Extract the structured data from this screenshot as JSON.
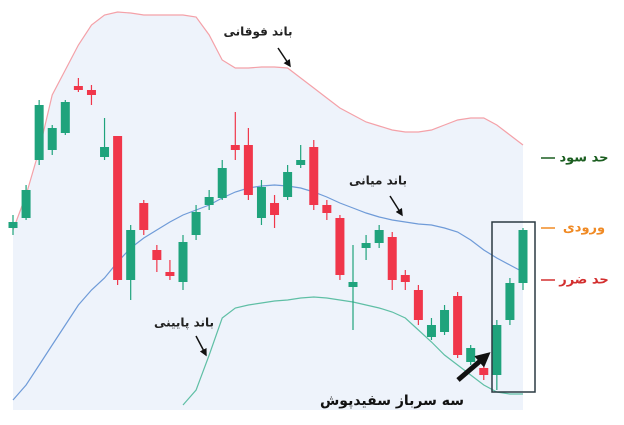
{
  "chart_data": {
    "type": "candlestick",
    "ylim": [
      0,
      425
    ],
    "up_color": "#1fa37c",
    "down_color": "#f0364a",
    "open": [
      197,
      207,
      265,
      275,
      292,
      339,
      335,
      268,
      289,
      145,
      222,
      175,
      153,
      143,
      190,
      220,
      227,
      280,
      280,
      207,
      222,
      228,
      260,
      278,
      220,
      207,
      138,
      177,
      182,
      188,
      150,
      135,
      88,
      93,
      129,
      63,
      57,
      50,
      105,
      142
    ],
    "high": [
      210,
      240,
      325,
      300,
      325,
      347,
      340,
      307,
      289,
      200,
      225,
      180,
      165,
      190,
      220,
      235,
      265,
      313,
      297,
      245,
      230,
      260,
      280,
      285,
      225,
      210,
      180,
      190,
      200,
      193,
      155,
      140,
      107,
      120,
      133,
      80,
      65,
      105,
      147,
      197
    ],
    "low": [
      190,
      205,
      260,
      270,
      290,
      333,
      320,
      265,
      140,
      125,
      190,
      153,
      145,
      135,
      185,
      215,
      225,
      265,
      225,
      200,
      197,
      225,
      257,
      215,
      205,
      145,
      95,
      165,
      177,
      135,
      135,
      100,
      85,
      90,
      67,
      60,
      45,
      35,
      100,
      135
    ],
    "close": [
      203,
      235,
      320,
      297,
      323,
      335,
      330,
      278,
      145,
      195,
      195,
      165,
      149,
      183,
      213,
      228,
      257,
      275,
      230,
      238,
      210,
      253,
      265,
      220,
      212,
      150,
      143,
      182,
      195,
      145,
      143,
      105,
      100,
      115,
      70,
      77,
      50,
      100,
      142,
      195
    ],
    "series": [
      {
        "name": "باند فوقانی",
        "color": "#f4a1a8",
        "values": [
          195,
          230,
          275,
          330,
          355,
          380,
          400,
          410,
          413,
          412,
          410,
          410,
          410,
          410,
          408,
          390,
          365,
          357,
          357,
          358,
          358,
          357,
          347,
          337,
          327,
          317,
          310,
          303,
          299,
          295,
          293,
          293,
          295,
          300,
          305,
          307,
          307,
          300,
          290,
          280
        ]
      },
      {
        "name": "باند میانی",
        "color": "#6f9bd8",
        "values": [
          25,
          40,
          60,
          80,
          100,
          120,
          135,
          147,
          163,
          177,
          187,
          195,
          203,
          210,
          215,
          220,
          227,
          233,
          237,
          239,
          240,
          239,
          237,
          233,
          228,
          222,
          217,
          212,
          208,
          205,
          203,
          201,
          200,
          197,
          193,
          185,
          175,
          167,
          160,
          153
        ]
      },
      {
        "name": "باند پایینی",
        "color": "#5fbfa5",
        "values": [
          null,
          null,
          null,
          null,
          null,
          null,
          null,
          null,
          null,
          null,
          null,
          null,
          null,
          20,
          35,
          70,
          107,
          117,
          120,
          122,
          124,
          125,
          127,
          128,
          127,
          125,
          123,
          120,
          117,
          113,
          107,
          95,
          83,
          70,
          60,
          50,
          40,
          33,
          31,
          31
        ]
      }
    ],
    "levels": [
      {
        "label": "حد سود",
        "value": 267,
        "color": "#1b5e20"
      },
      {
        "label": "ورودی",
        "value": 197,
        "color": "#f08a24"
      },
      {
        "label": "حد ضرر",
        "value": 145,
        "color": "#d32f2f"
      }
    ],
    "pattern_label": "سه سرباز سفیدپوش"
  }
}
